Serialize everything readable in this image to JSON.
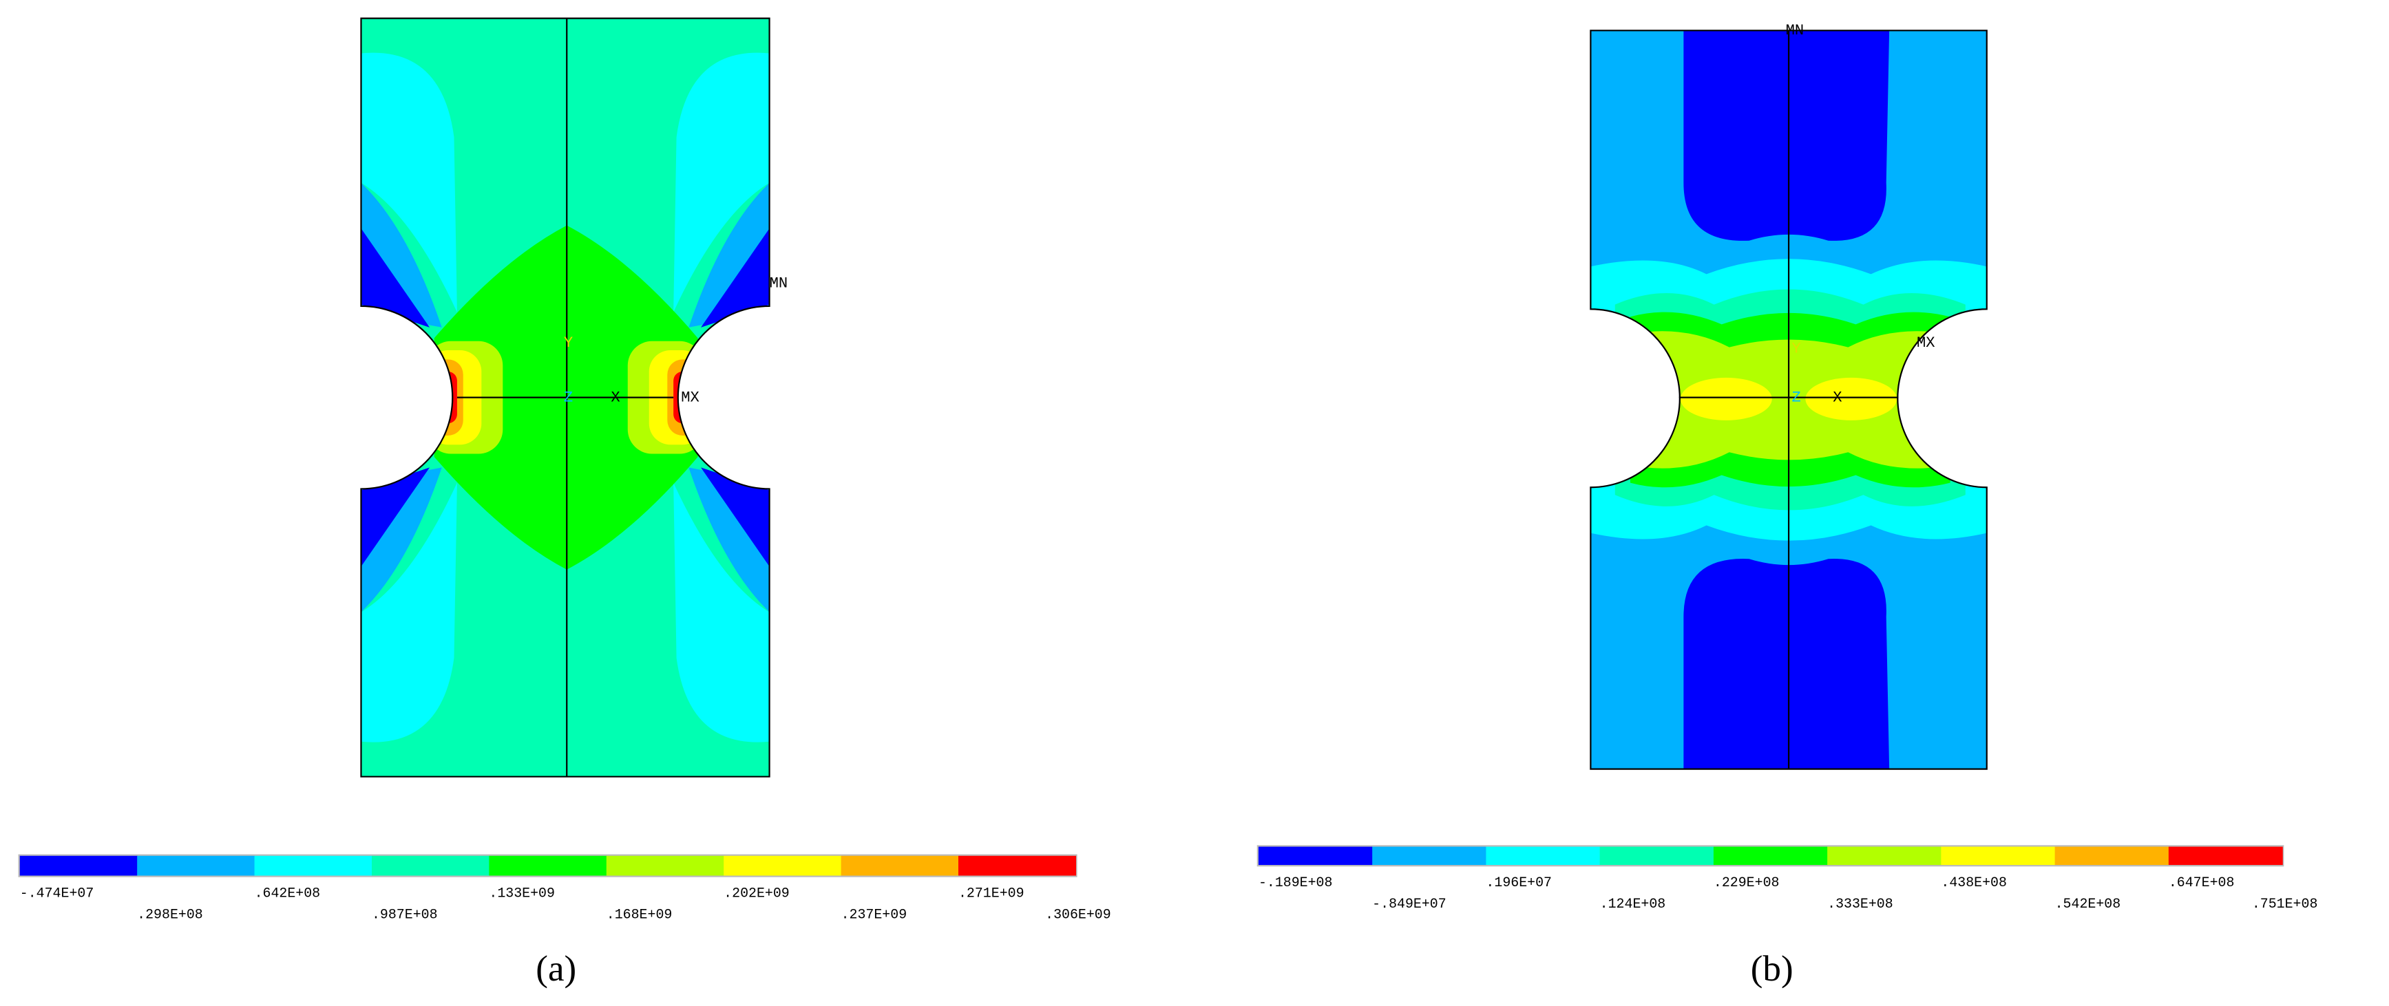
{
  "colorbar_colors": [
    "#0000ff",
    "#00b2ff",
    "#00ffff",
    "#00ffb2",
    "#00ff00",
    "#b2ff00",
    "#ffff00",
    "#ffb200",
    "#ff0000"
  ],
  "panels": [
    {
      "caption": "(a)",
      "node_labels": [
        "MN",
        "MX",
        "Y",
        "Z",
        "X"
      ],
      "colorbar_labels": [
        "-.474E+07",
        ".298E+08",
        ".642E+08",
        ".987E+08",
        ".133E+09",
        ".168E+09",
        ".202E+09",
        ".237E+09",
        ".271E+09",
        ".306E+09"
      ]
    },
    {
      "caption": "(b)",
      "node_labels": [
        "MN",
        "MX",
        "Y",
        "Z",
        "X"
      ],
      "colorbar_labels": [
        "-.189E+08",
        "-.849E+07",
        ".196E+07",
        ".124E+08",
        ".229E+08",
        ".333E+08",
        ".438E+08",
        ".542E+08",
        ".647E+08",
        ".751E+08"
      ]
    }
  ]
}
